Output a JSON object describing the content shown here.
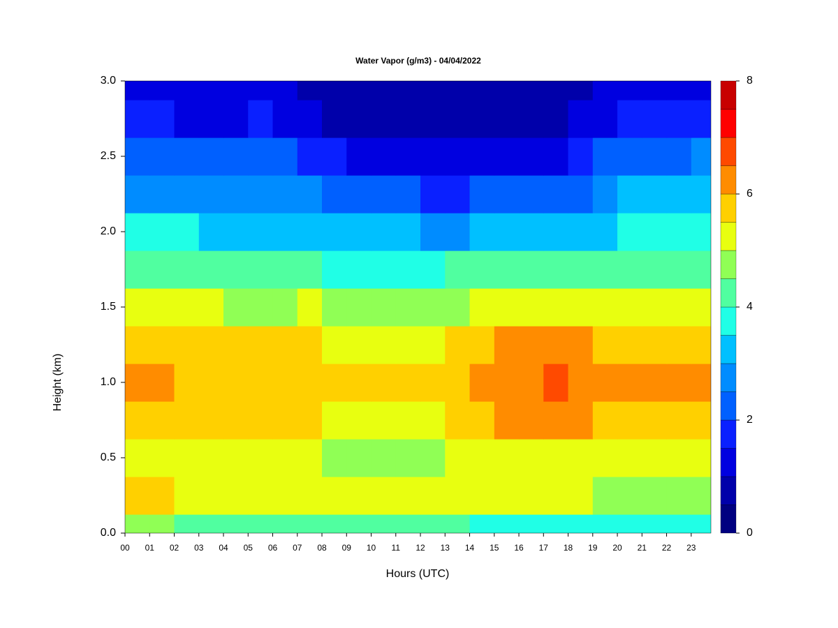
{
  "chart_data": {
    "type": "heatmap",
    "title": "Water Vapor (g/m3) - 04/04/2022",
    "x_label": "Hours (UTC)",
    "y_label": "Height (km)",
    "x": [
      0,
      1,
      2,
      3,
      4,
      5,
      6,
      7,
      8,
      9,
      10,
      11,
      12,
      13,
      14,
      15,
      16,
      17,
      18,
      19,
      20,
      21,
      22,
      23
    ],
    "y": [
      0,
      0.25,
      0.5,
      0.75,
      1,
      1.25,
      1.5,
      1.75,
      2,
      2.25,
      2.5,
      2.75,
      3
    ],
    "z": [
      [
        4.8,
        4.6,
        4.4,
        4.3,
        4.3,
        4.3,
        4.3,
        4.2,
        4.2,
        4.2,
        4.2,
        4.2,
        4.1,
        4.0,
        3.8,
        3.7,
        3.6,
        3.6,
        3.7,
        3.7,
        3.8,
        3.8,
        3.9,
        3.9
      ],
      [
        5.8,
        5.6,
        5.4,
        5.4,
        5.3,
        5.3,
        5.3,
        5.2,
        5.2,
        5.2,
        5.2,
        5.2,
        5.2,
        5.1,
        5.0,
        5.0,
        5.0,
        5.1,
        5.0,
        4.9,
        4.9,
        4.9,
        4.9,
        4.8
      ],
      [
        5.1,
        5.0,
        5.0,
        5.0,
        5.0,
        5.0,
        5.0,
        5.0,
        4.9,
        4.9,
        4.9,
        4.9,
        4.9,
        5.0,
        5.0,
        5.1,
        5.1,
        5.2,
        5.1,
        5.0,
        5.0,
        5.0,
        5.1,
        5.0
      ],
      [
        5.9,
        5.8,
        5.7,
        5.6,
        5.6,
        5.6,
        5.6,
        5.5,
        5.3,
        5.3,
        5.3,
        5.3,
        5.4,
        5.6,
        5.9,
        6.0,
        6.1,
        6.3,
        6.1,
        5.8,
        5.8,
        5.8,
        5.9,
        5.8
      ],
      [
        6.1,
        6.0,
        5.9,
        5.8,
        5.8,
        5.8,
        5.8,
        5.9,
        5.5,
        5.5,
        5.5,
        5.5,
        5.6,
        5.8,
        6.1,
        6.3,
        6.4,
        6.6,
        6.4,
        6.1,
        6.0,
        6.0,
        6.2,
        6.1
      ],
      [
        5.8,
        5.8,
        5.7,
        5.6,
        5.6,
        5.6,
        5.6,
        5.7,
        5.4,
        5.3,
        5.3,
        5.3,
        5.4,
        5.6,
        5.8,
        6.0,
        6.0,
        6.1,
        6.0,
        5.8,
        5.8,
        5.8,
        5.9,
        5.8
      ],
      [
        5.0,
        5.0,
        5.0,
        5.0,
        4.9,
        4.9,
        4.9,
        5.0,
        4.8,
        4.7,
        4.7,
        4.7,
        4.8,
        4.9,
        5.1,
        5.2,
        5.2,
        5.3,
        5.2,
        5.1,
        5.0,
        5.1,
        5.1,
        5.1
      ],
      [
        4.3,
        4.3,
        4.3,
        4.2,
        4.1,
        4.1,
        4.1,
        4.4,
        3.9,
        3.8,
        3.8,
        3.8,
        3.9,
        4.0,
        4.1,
        4.2,
        4.2,
        4.2,
        4.2,
        4.3,
        4.3,
        4.3,
        4.4,
        4.3
      ],
      [
        3.6,
        3.6,
        3.5,
        3.4,
        3.4,
        3.4,
        3.4,
        3.3,
        3.1,
        3.0,
        3.0,
        3.0,
        2.9,
        2.9,
        3.0,
        3.1,
        3.2,
        3.2,
        3.2,
        3.4,
        3.6,
        3.7,
        3.7,
        3.8
      ],
      [
        2.9,
        2.8,
        2.8,
        2.7,
        2.7,
        2.7,
        2.7,
        2.5,
        2.2,
        2.0,
        2.0,
        2.0,
        1.9,
        1.9,
        2.0,
        2.1,
        2.1,
        2.1,
        2.3,
        2.7,
        3.0,
        3.0,
        3.0,
        3.1
      ],
      [
        2.2,
        2.1,
        2.1,
        2.0,
        2.0,
        2.1,
        2.0,
        1.8,
        1.5,
        1.3,
        1.3,
        1.3,
        1.3,
        1.2,
        1.2,
        1.3,
        1.2,
        1.3,
        1.5,
        2.0,
        2.4,
        2.4,
        2.4,
        2.5
      ],
      [
        1.6,
        1.5,
        1.4,
        1.4,
        1.4,
        1.5,
        1.4,
        1.1,
        0.9,
        0.8,
        0.8,
        0.8,
        0.8,
        0.8,
        0.8,
        0.8,
        0.8,
        0.8,
        1.0,
        1.4,
        1.8,
        1.8,
        1.9,
        1.9
      ],
      [
        1.2,
        1.1,
        1.1,
        1.0,
        1.0,
        1.0,
        1.0,
        0.8,
        0.6,
        0.6,
        0.6,
        0.6,
        0.6,
        0.6,
        0.6,
        0.6,
        0.6,
        0.6,
        0.8,
        1.0,
        1.3,
        1.3,
        1.4,
        1.4
      ]
    ],
    "xlim": [
      0,
      23.8
    ],
    "ylim": [
      0,
      3
    ],
    "xticks": [
      {
        "value": 0,
        "label": "00"
      },
      {
        "value": 1,
        "label": "01"
      },
      {
        "value": 2,
        "label": "02"
      },
      {
        "value": 3,
        "label": "03"
      },
      {
        "value": 4,
        "label": "04"
      },
      {
        "value": 5,
        "label": "05"
      },
      {
        "value": 6,
        "label": "06"
      },
      {
        "value": 7,
        "label": "07"
      },
      {
        "value": 8,
        "label": "08"
      },
      {
        "value": 9,
        "label": "09"
      },
      10,
      11,
      12,
      13,
      14,
      15,
      16,
      17,
      18,
      19,
      20,
      21,
      22,
      23
    ],
    "yticks": [
      {
        "value": 0,
        "label": "0.0"
      },
      0.5,
      {
        "value": 1,
        "label": "1.0"
      },
      1.5,
      {
        "value": 2,
        "label": "2.0"
      },
      2.5,
      {
        "value": 3,
        "label": "3.0"
      }
    ],
    "levels": [
      0,
      0.5,
      1,
      1.5,
      2,
      2.5,
      3,
      3.5,
      4,
      4.5,
      5,
      5.5,
      6,
      6.5,
      7,
      7.5,
      8
    ],
    "colors": [
      "#000080",
      "#0000aa",
      "#0000e0",
      "#0a20ff",
      "#0060ff",
      "#008cff",
      "#00c0ff",
      "#20ffe6",
      "#50ffa0",
      "#90ff55",
      "#e8ff10",
      "#ffd000",
      "#ff8c00",
      "#ff4a00",
      "#ff0000",
      "#c80000",
      "#800000"
    ],
    "zlim": [
      0,
      8
    ],
    "zticks": [
      0,
      2,
      4,
      6,
      8
    ]
  }
}
